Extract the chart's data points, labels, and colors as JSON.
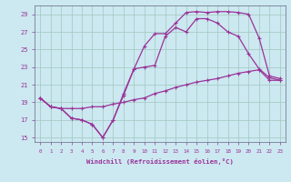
{
  "background_color": "#cce8f0",
  "grid_color": "#a0c8c0",
  "line_color": "#993399",
  "xlabel": "Windchill (Refroidissement éolien,°C)",
  "xlim": [
    -0.5,
    23.5
  ],
  "ylim": [
    14.5,
    30.0
  ],
  "yticks": [
    15,
    17,
    19,
    21,
    23,
    25,
    27,
    29
  ],
  "xticks": [
    0,
    1,
    2,
    3,
    4,
    5,
    6,
    7,
    8,
    9,
    10,
    11,
    12,
    13,
    14,
    15,
    16,
    17,
    18,
    19,
    20,
    21,
    22,
    23
  ],
  "line1_x": [
    0,
    1,
    2,
    3,
    4,
    5,
    6,
    7,
    8,
    9,
    10,
    11,
    12,
    13,
    14,
    15,
    16,
    17,
    18,
    19,
    20,
    21,
    22,
    23
  ],
  "line1_y": [
    19.5,
    18.5,
    18.3,
    18.3,
    18.3,
    18.5,
    18.5,
    18.8,
    19.0,
    19.3,
    19.5,
    20.0,
    20.3,
    20.7,
    21.0,
    21.3,
    21.5,
    21.7,
    22.0,
    22.3,
    22.5,
    22.7,
    21.5,
    21.5
  ],
  "line2_x": [
    0,
    1,
    2,
    3,
    4,
    5,
    6,
    7,
    8,
    9,
    10,
    11,
    12,
    13,
    14,
    15,
    16,
    17,
    18,
    19,
    20,
    21,
    22,
    23
  ],
  "line2_y": [
    19.5,
    18.5,
    18.3,
    17.2,
    17.0,
    16.5,
    15.0,
    17.0,
    19.8,
    22.8,
    25.4,
    26.8,
    26.8,
    28.0,
    29.2,
    29.3,
    29.2,
    29.3,
    29.3,
    29.2,
    29.0,
    26.3,
    22.0,
    21.7
  ],
  "line3_x": [
    0,
    1,
    2,
    3,
    4,
    5,
    6,
    7,
    8,
    9,
    10,
    11,
    12,
    13,
    14,
    15,
    16,
    17,
    18,
    19,
    20,
    21,
    22,
    23
  ],
  "line3_y": [
    19.5,
    18.5,
    18.3,
    17.2,
    17.0,
    16.5,
    15.0,
    17.0,
    20.0,
    22.8,
    23.0,
    23.2,
    26.5,
    27.5,
    27.0,
    28.5,
    28.5,
    28.0,
    27.0,
    26.5,
    24.5,
    22.8,
    21.8,
    21.5
  ]
}
